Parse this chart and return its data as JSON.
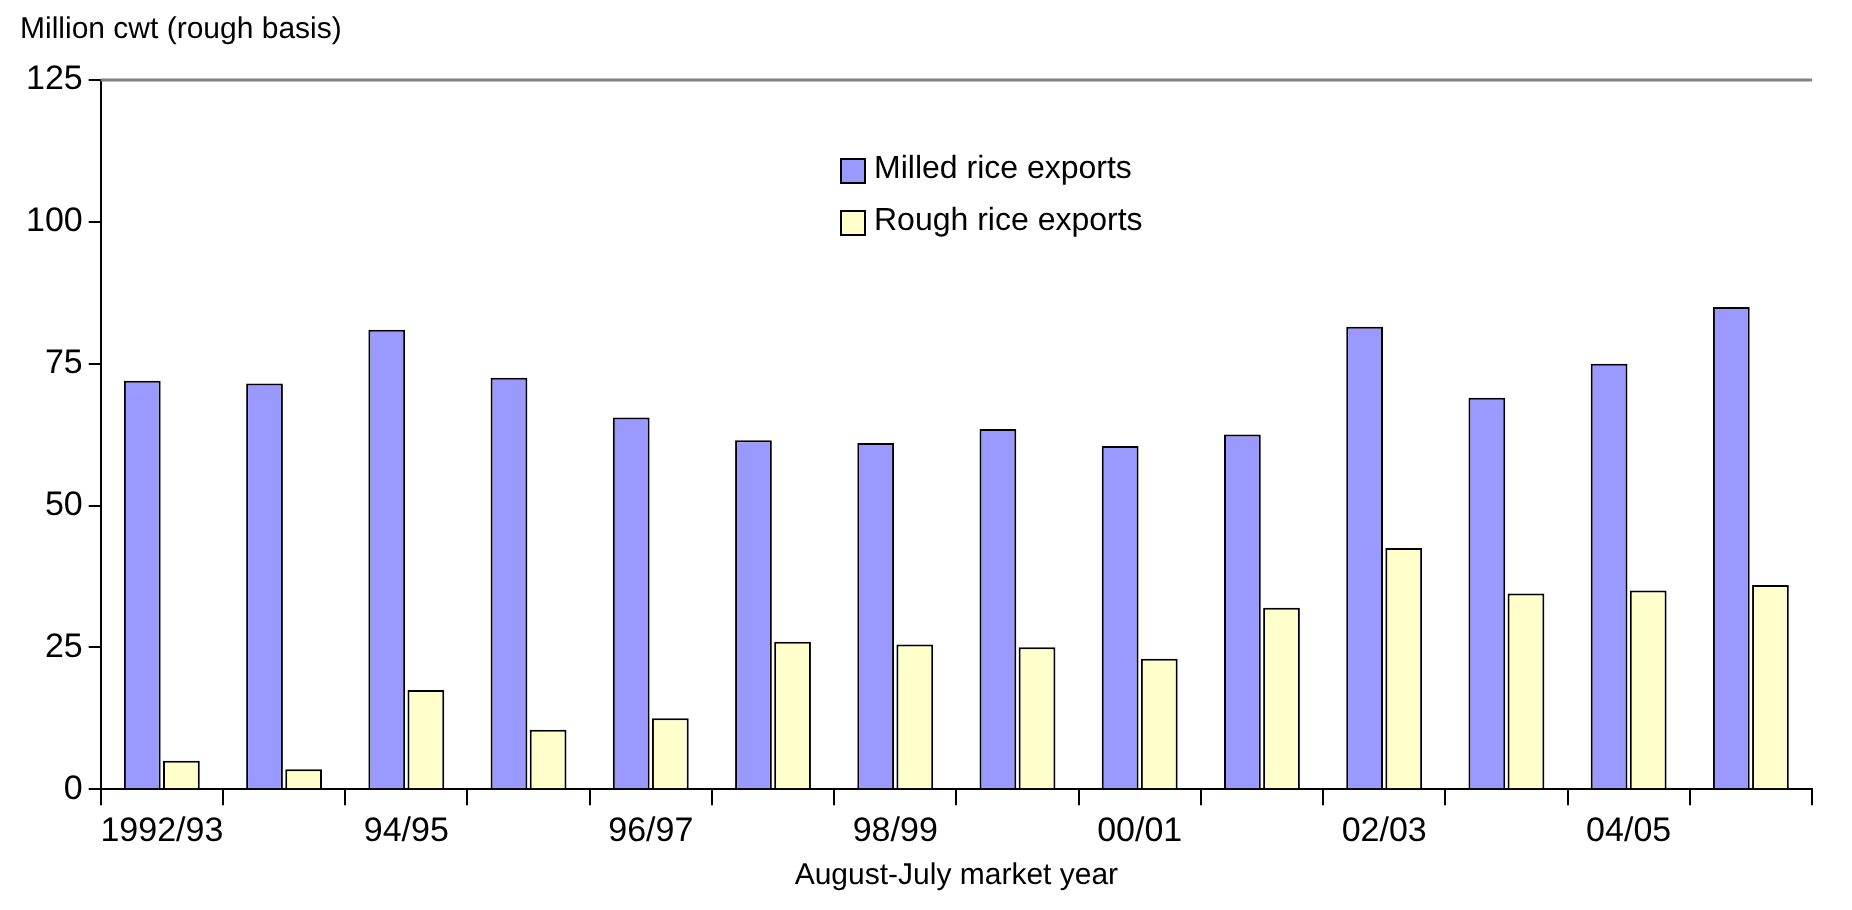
{
  "chart_data": {
    "type": "bar",
    "ylabel": "Million cwt (rough basis)",
    "xlabel": "August-July market year",
    "categories": [
      "1992/93",
      null,
      "94/95",
      null,
      "96/97",
      null,
      "98/99",
      null,
      "00/01",
      null,
      "02/03",
      null,
      "04/05",
      null
    ],
    "series": [
      {
        "name": "Milled rice exports",
        "color": "#9999ff",
        "values": [
          72,
          71.5,
          81,
          72.5,
          65.5,
          61.5,
          61,
          63.5,
          60.5,
          62.5,
          81.5,
          69,
          75,
          85
        ]
      },
      {
        "name": "Rough rice exports",
        "color": "#ffffcc",
        "values": [
          5,
          3.5,
          17.5,
          10.5,
          12.5,
          26,
          25.5,
          25,
          23,
          32,
          42.5,
          34.5,
          35,
          36
        ]
      }
    ],
    "ylim": [
      0,
      125
    ],
    "yticks": [
      0,
      25,
      50,
      75,
      100,
      125
    ],
    "grid": false,
    "legend": "top"
  }
}
